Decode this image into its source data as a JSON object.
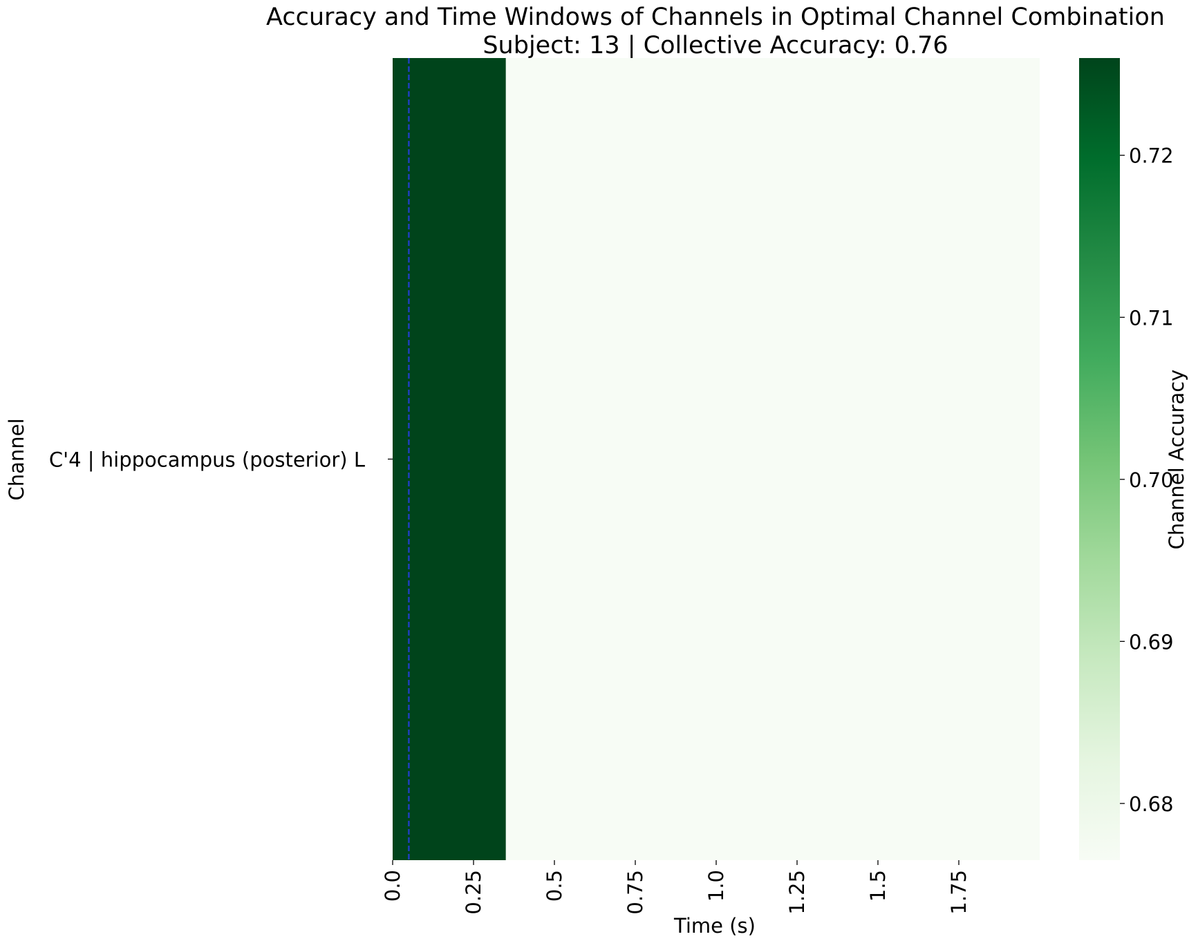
{
  "chart_data": {
    "type": "heatmap",
    "title": "Accuracy and Time Windows of Channels in Optimal Channel Combination",
    "subtitle": "Subject: 13 | Collective Accuracy: 0.76",
    "xlabel": "Time (s)",
    "ylabel": "Channel",
    "xlim": [
      0.0,
      2.0
    ],
    "x_ticks": [
      0.0,
      0.25,
      0.5,
      0.75,
      1.0,
      1.25,
      1.5,
      1.75
    ],
    "x_tick_labels": [
      "0.0",
      "0.25",
      "0.5",
      "0.75",
      "1.0",
      "1.25",
      "1.5",
      "1.75"
    ],
    "rows": [
      {
        "label": "C'4 | hippocampus (posterior) L",
        "segments": [
          {
            "start": 0.0,
            "end": 0.35,
            "accuracy": 0.726
          },
          {
            "start": 0.35,
            "end": 2.0,
            "accuracy": 0.6765
          }
        ]
      }
    ],
    "marker_line": {
      "x": 0.05,
      "color": "#1f3fbf",
      "style": "dashed"
    },
    "colorbar": {
      "label": "Channel Accuracy",
      "colormap": "Greens",
      "vmin": 0.6765,
      "vmax": 0.726,
      "ticks": [
        0.68,
        0.69,
        0.7,
        0.71,
        0.72
      ],
      "tick_labels": [
        "0.68",
        "0.69",
        "0.70",
        "0.71",
        "0.72"
      ]
    },
    "grid": false
  }
}
